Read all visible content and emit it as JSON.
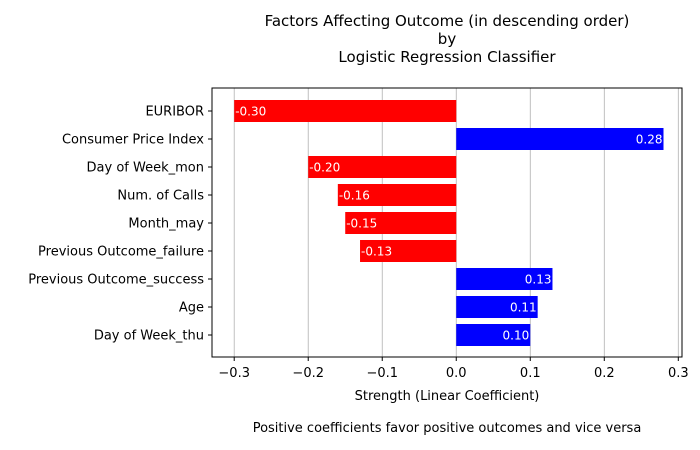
{
  "chart_data": {
    "type": "bar",
    "orientation": "horizontal",
    "title": [
      "Factors Affecting Outcome (in descending order)",
      "by",
      "Logistic Regression Classifier"
    ],
    "xlabel": "Strength (Linear Coefficient)",
    "caption": "Positive coefficients favor positive outcomes and vice versa",
    "xlim": [
      -0.33,
      0.305
    ],
    "xticks": [
      -0.3,
      -0.2,
      -0.1,
      0.0,
      0.1,
      0.2,
      0.3
    ],
    "xtick_labels": [
      "−0.3",
      "−0.2",
      "−0.1",
      "0.0",
      "0.1",
      "0.2",
      "0.3"
    ],
    "grid": "vertical",
    "categories": [
      "EURIBOR",
      "Consumer Price Index",
      "Day of Week_mon",
      "Num. of Calls",
      "Month_may",
      "Previous Outcome_failure",
      "Previous Outcome_success",
      "Age",
      "Day of Week_thu"
    ],
    "values": [
      -0.3,
      0.28,
      -0.2,
      -0.16,
      -0.15,
      -0.13,
      0.13,
      0.11,
      0.1
    ],
    "value_labels": [
      "-0.30",
      "0.28",
      "-0.20",
      "-0.16",
      "-0.15",
      "-0.13",
      "0.13",
      "0.11",
      "0.10"
    ],
    "colors": {
      "negative": "#ff0000",
      "positive": "#0000ff",
      "grid": "#b0b0b0",
      "axis": "#000000"
    }
  }
}
